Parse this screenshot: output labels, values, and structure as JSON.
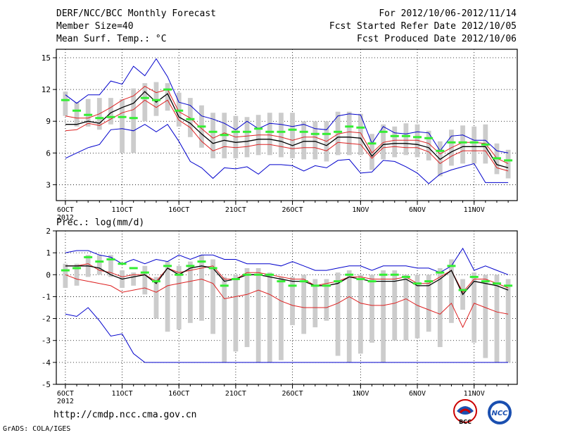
{
  "header": {
    "title": "DERF/NCC/BCC Monthly Forecast",
    "member": "Member Size=40",
    "variable": "Mean Surf. Temp.: °C",
    "period": "For 2012/10/06-2012/11/14",
    "started": "Fcst Started Refer Date 2012/10/05",
    "produced": "Fcst Produced Date 2012/10/06"
  },
  "footer": {
    "url": "http://cmdp.ncc.cma.gov.cn",
    "credit": "GrADS: COLA/IGES",
    "logo_left": "BCC",
    "logo_right": "NCC"
  },
  "colors": {
    "gray_bar": "#cccccc",
    "green": "#33ee33",
    "red": "#dd2222",
    "blue": "#0000cc",
    "mean": "#000000"
  },
  "chart_data": [
    {
      "type": "line",
      "title": "Mean Surf. Temp.: °C",
      "xlabel": "",
      "ylabel": "°C",
      "x": [
        1,
        2,
        3,
        4,
        5,
        6,
        7,
        8,
        9,
        10,
        11,
        12,
        13,
        14,
        15,
        16,
        17,
        18,
        19,
        20,
        21,
        22,
        23,
        24,
        25,
        26,
        27,
        28,
        29,
        30,
        31,
        32,
        33,
        34,
        35,
        36,
        37,
        38,
        39,
        40
      ],
      "xticks": [
        {
          "x": 1,
          "label": "6OCT"
        },
        {
          "x": 6,
          "label": "11OCT"
        },
        {
          "x": 11,
          "label": "16OCT"
        },
        {
          "x": 16,
          "label": "21OCT"
        },
        {
          "x": 21,
          "label": "26OCT"
        },
        {
          "x": 27,
          "label": "1NOV"
        },
        {
          "x": 32,
          "label": "6NOV"
        },
        {
          "x": 37,
          "label": "11NOV"
        }
      ],
      "year_label": "2012",
      "xlim": [
        0.2,
        40.8
      ],
      "ylim": [
        1.5,
        15.8
      ],
      "yticks": [
        3,
        6,
        9,
        12,
        15
      ],
      "grid": true,
      "series": [
        {
          "name": "max",
          "color": "#0000cc",
          "values": [
            11.5,
            10.7,
            11.5,
            11.5,
            12.8,
            12.5,
            14.2,
            13.3,
            14.9,
            13.2,
            10.8,
            10.5,
            9.5,
            9.2,
            8.8,
            8.2,
            9.0,
            8.3,
            8.8,
            8.7,
            8.5,
            8.7,
            8.3,
            8.2,
            9.5,
            9.7,
            9.6,
            6.9,
            8.5,
            7.9,
            7.8,
            8.0,
            7.9,
            6.2,
            7.6,
            7.7,
            7.2,
            7.2,
            6.2,
            6.0
          ]
        },
        {
          "name": "upper",
          "color": "#dd2222",
          "values": [
            9.5,
            9.3,
            9.3,
            9.7,
            10.3,
            11.0,
            11.4,
            12.3,
            11.7,
            12.0,
            9.9,
            9.3,
            8.3,
            7.4,
            7.9,
            7.5,
            7.6,
            7.7,
            7.7,
            7.5,
            7.2,
            7.5,
            7.5,
            7.1,
            7.8,
            8.0,
            7.9,
            6.0,
            7.0,
            7.2,
            7.2,
            7.2,
            6.9,
            5.9,
            6.5,
            7.0,
            7.0,
            6.9,
            5.5,
            5.0
          ]
        },
        {
          "name": "mean",
          "color": "#000000",
          "values": [
            8.7,
            8.7,
            9.0,
            8.8,
            9.8,
            10.3,
            10.7,
            11.8,
            10.8,
            11.6,
            9.4,
            8.8,
            7.8,
            6.9,
            7.2,
            7.0,
            7.1,
            7.3,
            7.3,
            7.1,
            6.7,
            7.1,
            7.1,
            6.7,
            7.5,
            7.5,
            7.4,
            5.7,
            6.8,
            6.9,
            6.9,
            6.8,
            6.5,
            5.4,
            6.1,
            6.6,
            6.6,
            6.6,
            4.9,
            4.6
          ]
        },
        {
          "name": "lower",
          "color": "#dd2222",
          "values": [
            8.1,
            8.2,
            8.8,
            8.6,
            9.2,
            9.8,
            10.1,
            11.0,
            10.3,
            11.0,
            9.1,
            8.4,
            7.1,
            6.2,
            6.6,
            6.5,
            6.6,
            6.8,
            6.8,
            6.6,
            6.4,
            6.5,
            6.5,
            6.2,
            7.0,
            6.9,
            6.8,
            5.5,
            6.5,
            6.6,
            6.5,
            6.5,
            6.1,
            5.0,
            5.7,
            6.2,
            6.2,
            6.2,
            4.6,
            4.3
          ]
        },
        {
          "name": "min",
          "color": "#0000cc",
          "values": [
            5.5,
            6.0,
            6.5,
            6.8,
            8.2,
            8.3,
            8.1,
            8.7,
            8.0,
            8.7,
            7.1,
            5.2,
            4.6,
            3.6,
            4.6,
            4.5,
            4.7,
            4.0,
            4.9,
            4.9,
            4.8,
            4.3,
            4.8,
            4.6,
            5.3,
            5.4,
            4.1,
            4.2,
            5.3,
            5.2,
            4.7,
            4.1,
            3.1,
            4.0,
            4.4,
            4.7,
            5.0,
            3.2,
            3.2,
            3.2
          ]
        }
      ],
      "members": {
        "name": "ensemble members",
        "color": "#33ee33",
        "values": [
          11.0,
          10.0,
          9.6,
          9.3,
          9.4,
          9.4,
          9.3,
          11.2,
          11.0,
          12.0,
          10.0,
          9.2,
          8.5,
          8.0,
          7.7,
          8.0,
          8.0,
          8.3,
          8.0,
          8.0,
          8.2,
          8.0,
          7.8,
          7.8,
          8.0,
          8.5,
          8.4,
          6.9,
          8.0,
          7.6,
          7.6,
          7.5,
          7.4,
          6.2,
          7.0,
          7.0,
          7.0,
          6.8,
          5.5,
          5.3
        ]
      },
      "ranges": {
        "name": "spread",
        "color": "#cccccc",
        "low": [
          9.5,
          8.5,
          8.5,
          8.2,
          8.7,
          6.0,
          6.0,
          9.0,
          9.5,
          10.0,
          8.5,
          7.5,
          6.5,
          5.5,
          5.5,
          5.5,
          5.6,
          5.8,
          5.8,
          5.6,
          5.5,
          5.4,
          5.4,
          5.2,
          5.8,
          5.8,
          5.8,
          4.4,
          5.4,
          5.6,
          5.8,
          5.6,
          5.3,
          3.8,
          4.8,
          5.0,
          5.0,
          5.0,
          4.0,
          3.6
        ],
        "high": [
          11.8,
          10.8,
          11.1,
          11.2,
          11.2,
          11.1,
          12.1,
          12.6,
          12.7,
          12.6,
          11.7,
          11.2,
          10.5,
          9.8,
          9.8,
          9.5,
          9.4,
          9.6,
          9.8,
          9.8,
          9.8,
          9.0,
          9.0,
          9.0,
          9.9,
          9.9,
          9.7,
          7.8,
          8.7,
          8.5,
          8.8,
          8.7,
          8.1,
          7.1,
          8.2,
          8.6,
          8.5,
          8.7,
          6.9,
          6.3
        ]
      }
    },
    {
      "type": "line",
      "title": "Prec.: log(mm/d)",
      "xlabel": "",
      "ylabel": "log(mm/d)",
      "x": [
        1,
        2,
        3,
        4,
        5,
        6,
        7,
        8,
        9,
        10,
        11,
        12,
        13,
        14,
        15,
        16,
        17,
        18,
        19,
        20,
        21,
        22,
        23,
        24,
        25,
        26,
        27,
        28,
        29,
        30,
        31,
        32,
        33,
        34,
        35,
        36,
        37,
        38,
        39,
        40
      ],
      "xticks": [
        {
          "x": 1,
          "label": "6OCT"
        },
        {
          "x": 6,
          "label": "11OCT"
        },
        {
          "x": 11,
          "label": "16OCT"
        },
        {
          "x": 16,
          "label": "21OCT"
        },
        {
          "x": 21,
          "label": "26OCT"
        },
        {
          "x": 27,
          "label": "1NOV"
        },
        {
          "x": 32,
          "label": "6NOV"
        },
        {
          "x": 37,
          "label": "11NOV"
        }
      ],
      "year_label": "2012",
      "xlim": [
        0.2,
        40.8
      ],
      "ylim": [
        -5,
        2
      ],
      "yticks": [
        -5,
        -4,
        -3,
        -2,
        -1,
        0,
        1,
        2
      ],
      "grid": true,
      "series": [
        {
          "name": "max",
          "color": "#0000cc",
          "values": [
            1.0,
            1.1,
            1.1,
            0.9,
            0.8,
            0.5,
            0.7,
            0.5,
            0.7,
            0.6,
            0.9,
            0.7,
            0.9,
            0.9,
            0.7,
            0.7,
            0.5,
            0.5,
            0.5,
            0.4,
            0.6,
            0.4,
            0.2,
            0.2,
            0.3,
            0.4,
            0.4,
            0.2,
            0.4,
            0.4,
            0.4,
            0.3,
            0.3,
            0.1,
            0.4,
            1.2,
            0.2,
            0.4,
            0.2,
            0.0
          ]
        },
        {
          "name": "upper",
          "color": "#dd2222",
          "values": [
            0.4,
            0.4,
            0.5,
            0.2,
            0.1,
            -0.1,
            0.0,
            0.0,
            -0.3,
            0.3,
            0.1,
            0.2,
            0.3,
            0.4,
            -0.2,
            -0.2,
            0.1,
            0.1,
            0.0,
            -0.1,
            -0.2,
            -0.2,
            -0.5,
            -0.4,
            -0.3,
            -0.1,
            -0.1,
            -0.2,
            -0.2,
            -0.2,
            -0.1,
            -0.4,
            -0.4,
            -0.1,
            0.2,
            -0.8,
            -0.2,
            -0.2,
            -0.4,
            -0.6
          ]
        },
        {
          "name": "mean",
          "color": "#000000",
          "values": [
            0.4,
            0.4,
            0.4,
            0.3,
            0.0,
            -0.2,
            -0.1,
            0.0,
            -0.4,
            0.3,
            0.0,
            0.3,
            0.4,
            0.3,
            -0.3,
            -0.2,
            0.0,
            0.0,
            -0.1,
            -0.2,
            -0.3,
            -0.3,
            -0.5,
            -0.5,
            -0.4,
            -0.1,
            -0.2,
            -0.3,
            -0.3,
            -0.3,
            -0.2,
            -0.5,
            -0.5,
            -0.2,
            0.2,
            -0.9,
            -0.3,
            -0.4,
            -0.5,
            -0.7
          ]
        },
        {
          "name": "lower",
          "color": "#dd2222",
          "values": [
            0.0,
            -0.2,
            -0.3,
            -0.4,
            -0.5,
            -0.8,
            -0.7,
            -0.6,
            -0.8,
            -0.5,
            -0.4,
            -0.3,
            -0.2,
            -0.4,
            -1.1,
            -1.0,
            -0.9,
            -0.7,
            -0.9,
            -1.2,
            -1.4,
            -1.5,
            -1.5,
            -1.5,
            -1.3,
            -1.0,
            -1.3,
            -1.4,
            -1.4,
            -1.3,
            -1.1,
            -1.4,
            -1.6,
            -1.8,
            -1.3,
            -2.4,
            -1.3,
            -1.5,
            -1.7,
            -1.8
          ]
        },
        {
          "name": "min",
          "color": "#0000cc",
          "values": [
            -1.8,
            -1.9,
            -1.5,
            -2.1,
            -2.8,
            -2.7,
            -3.6,
            -4.0,
            -4.0,
            -4.0,
            -4.0,
            -4.0,
            -4.0,
            -4.0,
            -4.0,
            -4.0,
            -4.0,
            -4.0,
            -4.0,
            -4.0,
            -4.0,
            -4.0,
            -4.0,
            -4.0,
            -4.0,
            -4.0,
            -4.0,
            -4.0,
            -4.0,
            -4.0,
            -4.0,
            -4.0,
            -4.0,
            -4.0,
            -4.0,
            -4.0,
            -4.0,
            -4.0,
            -4.0,
            -4.0
          ]
        }
      ],
      "members": {
        "name": "ensemble members",
        "color": "#33ee33",
        "values": [
          0.2,
          0.3,
          0.8,
          0.6,
          0.7,
          0.5,
          0.3,
          0.1,
          -0.3,
          0.4,
          0.0,
          0.4,
          0.6,
          0.3,
          -0.5,
          -0.2,
          0.0,
          0.0,
          0.0,
          -0.3,
          -0.5,
          -0.3,
          -0.5,
          -0.5,
          -0.3,
          0.0,
          -0.2,
          -0.3,
          0.0,
          0.0,
          -0.1,
          -0.4,
          -0.3,
          0.1,
          0.4,
          -0.7,
          -0.1,
          -0.3,
          -0.4,
          -0.5
        ]
      },
      "ranges": {
        "name": "spread",
        "color": "#cccccc",
        "low": [
          -0.6,
          -0.5,
          -0.1,
          0.0,
          -0.1,
          -0.6,
          -0.5,
          -0.9,
          -2.0,
          -2.6,
          -2.5,
          -2.2,
          -2.1,
          -2.7,
          -4.0,
          -3.5,
          -3.3,
          -4.0,
          -4.0,
          -3.9,
          -2.3,
          -2.7,
          -2.4,
          -2.1,
          -3.7,
          -4.0,
          -3.6,
          -3.1,
          -4.0,
          -3.0,
          -3.0,
          -2.9,
          -2.6,
          -3.3,
          -2.2,
          -1.6,
          -3.1,
          -3.8,
          -4.0,
          -4.0
        ],
        "high": [
          0.5,
          0.5,
          0.9,
          0.9,
          0.9,
          0.2,
          0.1,
          0.4,
          -0.1,
          0.6,
          0.4,
          0.6,
          0.9,
          0.7,
          -0.1,
          0.0,
          0.3,
          0.3,
          0.1,
          -0.1,
          -0.1,
          0.0,
          -0.2,
          -0.2,
          0.1,
          0.2,
          0.0,
          0.0,
          0.2,
          0.2,
          0.0,
          0.0,
          0.0,
          0.3,
          0.7,
          -0.2,
          0.1,
          0.0,
          0.0,
          -0.2
        ]
      }
    }
  ]
}
